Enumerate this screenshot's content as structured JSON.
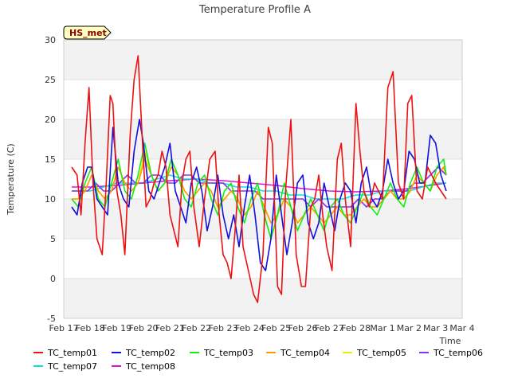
{
  "chart_data": {
    "type": "line",
    "title": "Temperature Profile A",
    "xlabel": "Time",
    "ylabel": "Temperature (C)",
    "badge": "HS_met",
    "ylim": [
      -5,
      30
    ],
    "xlim": [
      0,
      15
    ],
    "y_ticks": [
      -5,
      0,
      5,
      10,
      15,
      20,
      25,
      30
    ],
    "x_ticks": [
      {
        "label": "Feb 17",
        "x": 0
      },
      {
        "label": "Feb 18",
        "x": 1
      },
      {
        "label": "Feb 19",
        "x": 2
      },
      {
        "label": "Feb 20",
        "x": 3
      },
      {
        "label": "Feb 21",
        "x": 4
      },
      {
        "label": "Feb 22",
        "x": 5
      },
      {
        "label": "Feb 23",
        "x": 6
      },
      {
        "label": "Feb 24",
        "x": 7
      },
      {
        "label": "Feb 25",
        "x": 8
      },
      {
        "label": "Feb 26",
        "x": 9
      },
      {
        "label": "Feb 27",
        "x": 10
      },
      {
        "label": "Feb 28",
        "x": 11
      },
      {
        "label": "Mar 1",
        "x": 12
      },
      {
        "label": "Mar 2",
        "x": 13
      },
      {
        "label": "Mar 3",
        "x": 14
      },
      {
        "label": "Mar 4",
        "x": 15
      }
    ],
    "shaded_bands": [
      [
        -5,
        0
      ],
      [
        5,
        10
      ],
      [
        15,
        20
      ],
      [
        25,
        30
      ]
    ],
    "x_unit": "days since Feb 17",
    "series": [
      {
        "name": "TC_temp01",
        "color": "#ee1111",
        "x": [
          0.3,
          0.5,
          0.65,
          0.8,
          0.95,
          1.1,
          1.25,
          1.45,
          1.6,
          1.75,
          1.85,
          2.0,
          2.15,
          2.3,
          2.5,
          2.65,
          2.8,
          2.95,
          3.1,
          3.25,
          3.4,
          3.55,
          3.7,
          3.85,
          4.0,
          4.15,
          4.3,
          4.45,
          4.6,
          4.75,
          4.9,
          5.1,
          5.3,
          5.5,
          5.7,
          5.85,
          6.0,
          6.15,
          6.3,
          6.45,
          6.6,
          6.75,
          6.95,
          7.15,
          7.3,
          7.5,
          7.7,
          7.85,
          8.05,
          8.2,
          8.35,
          8.55,
          8.75,
          8.95,
          9.1,
          9.3,
          9.45,
          9.6,
          9.75,
          9.9,
          10.1,
          10.3,
          10.45,
          10.6,
          10.8,
          11.0,
          11.15,
          11.3,
          11.5,
          11.7,
          11.85,
          12.0,
          12.2,
          12.4,
          12.6,
          12.8,
          12.95,
          13.1,
          13.3,
          13.5,
          13.7,
          13.85,
          14.0,
          14.2,
          14.4
        ],
        "y": [
          14,
          13,
          8,
          17,
          24,
          12,
          5,
          3,
          12,
          23,
          22,
          11,
          8,
          3,
          18,
          25,
          28,
          18,
          9,
          10,
          12,
          13,
          16,
          14,
          8,
          6,
          4,
          12,
          15,
          16,
          9,
          4,
          10,
          15,
          16,
          8,
          3,
          2,
          0,
          6,
          13,
          4,
          1,
          -2,
          -3,
          3,
          19,
          17,
          -1,
          -2,
          11,
          20,
          3,
          -1,
          -1,
          9,
          10,
          13,
          8,
          4,
          1,
          15,
          17,
          10,
          4,
          22,
          16,
          11,
          9,
          12,
          11,
          10,
          24,
          26,
          12,
          10,
          22,
          23,
          11,
          10,
          14,
          13,
          12,
          11,
          10
        ]
      },
      {
        "name": "TC_temp02",
        "color": "#1111dd",
        "x": [
          0.3,
          0.5,
          0.7,
          0.9,
          1.05,
          1.25,
          1.45,
          1.65,
          1.85,
          2.05,
          2.25,
          2.45,
          2.65,
          2.85,
          3.0,
          3.2,
          3.4,
          3.6,
          3.8,
          4.0,
          4.2,
          4.4,
          4.6,
          4.8,
          5.0,
          5.2,
          5.4,
          5.6,
          5.8,
          6.0,
          6.2,
          6.4,
          6.6,
          6.8,
          7.0,
          7.2,
          7.4,
          7.6,
          7.8,
          8.0,
          8.2,
          8.4,
          8.6,
          8.8,
          9.0,
          9.2,
          9.4,
          9.6,
          9.8,
          10.0,
          10.2,
          10.4,
          10.6,
          10.8,
          11.0,
          11.2,
          11.4,
          11.6,
          11.8,
          12.0,
          12.2,
          12.4,
          12.6,
          12.8,
          13.0,
          13.2,
          13.4,
          13.6,
          13.8,
          14.0,
          14.2,
          14.4
        ],
        "y": [
          9,
          8,
          12,
          14,
          14,
          10,
          9,
          8,
          19,
          12,
          10,
          9,
          16,
          20,
          17,
          11,
          10,
          12,
          14,
          17,
          11,
          9,
          7,
          12,
          14,
          11,
          6,
          9,
          13,
          8,
          5,
          8,
          4,
          9,
          13,
          8,
          2,
          1,
          5,
          13,
          8,
          3,
          7,
          12,
          13,
          7,
          5,
          7,
          12,
          9,
          6,
          10,
          12,
          11,
          7,
          12,
          14,
          10,
          9,
          11,
          15,
          12,
          10,
          11,
          16,
          15,
          12,
          12,
          18,
          17,
          13,
          11
        ]
      },
      {
        "name": "TC_temp03",
        "color": "#11ee11",
        "x": [
          0.3,
          0.55,
          0.8,
          1.05,
          1.3,
          1.55,
          1.8,
          2.05,
          2.3,
          2.55,
          2.8,
          3.05,
          3.3,
          3.55,
          3.8,
          4.05,
          4.3,
          4.55,
          4.8,
          5.05,
          5.3,
          5.55,
          5.8,
          6.05,
          6.3,
          6.55,
          6.8,
          7.05,
          7.3,
          7.55,
          7.8,
          8.05,
          8.3,
          8.55,
          8.8,
          9.05,
          9.3,
          9.55,
          9.8,
          10.05,
          10.3,
          10.55,
          10.8,
          11.05,
          11.3,
          11.55,
          11.8,
          12.05,
          12.3,
          12.55,
          12.8,
          13.05,
          13.3,
          13.55,
          13.8,
          14.05,
          14.3,
          14.4
        ],
        "y": [
          10,
          9,
          12,
          14,
          10,
          9,
          12,
          15,
          11,
          10,
          13,
          17,
          13,
          11,
          12,
          15,
          13,
          10,
          9,
          12,
          13,
          10,
          8,
          11,
          12,
          9,
          7,
          10,
          12,
          8,
          5,
          8,
          12,
          9,
          6,
          8,
          10,
          8,
          6,
          9,
          10,
          8,
          7,
          9,
          11,
          9,
          8,
          10,
          12,
          10,
          9,
          12,
          14,
          12,
          11,
          14,
          15,
          13
        ]
      },
      {
        "name": "TC_temp04",
        "color": "#ff9900",
        "x": [
          0.3,
          0.55,
          0.8,
          1.05,
          1.3,
          1.55,
          1.8,
          2.05,
          2.3,
          2.55,
          2.8,
          3.05,
          3.3,
          3.55,
          3.8,
          4.05,
          4.3,
          4.55,
          4.8,
          5.05,
          5.3,
          5.55,
          5.8,
          6.05,
          6.3,
          6.55,
          6.8,
          7.05,
          7.3,
          7.55,
          7.8,
          8.05,
          8.3,
          8.55,
          8.8,
          9.05,
          9.3,
          9.55,
          9.8,
          10.05,
          10.3,
          10.55,
          10.8,
          11.05,
          11.3,
          11.55,
          11.8,
          12.05,
          12.3,
          12.55,
          12.8,
          13.05,
          13.3,
          13.55,
          13.8,
          14.05,
          14.3,
          14.4
        ],
        "y": [
          10,
          10,
          11,
          13,
          11,
          10,
          11,
          14,
          12,
          11,
          12,
          15,
          13,
          11,
          12,
          14,
          13,
          11,
          10,
          11,
          12,
          11,
          9,
          10,
          11,
          10,
          8,
          9,
          11,
          9,
          7,
          8,
          10,
          9,
          7,
          8,
          9,
          8,
          7,
          8,
          9,
          8,
          8,
          9,
          10,
          9,
          9,
          10,
          11,
          10,
          10,
          11,
          13,
          12,
          11,
          13,
          14,
          13
        ]
      },
      {
        "name": "TC_temp05",
        "color": "#eeee00",
        "x": [
          0.3,
          0.55,
          0.8,
          1.05,
          1.3,
          1.55,
          1.8,
          2.05,
          2.3,
          2.55,
          2.8,
          3.05,
          3.3,
          3.55,
          3.8,
          4.05,
          4.3,
          4.55,
          4.8,
          5.05,
          5.3,
          5.55,
          5.8,
          6.05,
          6.3,
          6.55,
          6.8,
          7.05,
          7.3,
          7.55,
          7.8,
          8.05,
          8.3,
          8.55,
          8.8,
          9.05,
          9.3,
          9.55,
          9.8,
          10.05,
          10.3,
          10.55,
          10.8,
          11.05,
          11.3,
          11.55,
          11.8,
          12.05,
          12.3,
          12.55,
          12.8,
          13.05,
          13.3,
          13.55,
          13.8,
          14.05,
          14.3,
          14.4
        ],
        "y": [
          10,
          10,
          11,
          13,
          11,
          10,
          11,
          14,
          12,
          11,
          12,
          16,
          13,
          11,
          12,
          15,
          13,
          11,
          10,
          11,
          12,
          11,
          9,
          10,
          11,
          10,
          8,
          9,
          11,
          9,
          7,
          8,
          10,
          9,
          7,
          8,
          9,
          8,
          7,
          8,
          9,
          8,
          8,
          9,
          10,
          9,
          9,
          10,
          11,
          10,
          10,
          11,
          13,
          12,
          11,
          13,
          14,
          13
        ]
      },
      {
        "name": "TC_temp06",
        "color": "#8833ee",
        "x": [
          0.3,
          0.6,
          0.9,
          1.2,
          1.5,
          1.8,
          2.1,
          2.4,
          2.7,
          3.0,
          3.3,
          3.6,
          3.9,
          4.2,
          4.5,
          4.8,
          5.1,
          5.4,
          5.7,
          6.0,
          6.3,
          6.6,
          6.9,
          7.2,
          7.5,
          7.8,
          8.1,
          8.4,
          8.7,
          9.0,
          9.3,
          9.6,
          9.9,
          10.2,
          10.5,
          10.8,
          11.1,
          11.4,
          11.7,
          12.0,
          12.3,
          12.6,
          12.9,
          13.2,
          13.5,
          13.8,
          14.1,
          14.4
        ],
        "y": [
          11,
          11,
          11,
          12,
          11,
          11,
          12,
          13,
          12,
          12,
          13,
          13,
          12,
          12,
          13,
          13,
          12,
          12,
          12,
          12,
          11,
          11,
          11,
          11,
          10,
          10,
          10,
          10,
          10,
          10,
          9,
          10,
          9,
          9,
          9,
          9,
          10,
          9,
          10,
          10,
          11,
          11,
          11,
          12,
          12,
          13,
          14,
          13
        ]
      },
      {
        "name": "TC_temp07",
        "color": "#11dddd",
        "x": [
          0.3,
          1.0,
          1.5,
          2.0,
          2.5,
          3.0,
          3.5,
          4.0,
          4.5,
          5.0,
          5.5,
          6.0,
          6.5,
          7.0,
          7.5,
          8.0,
          8.5,
          9.0,
          9.5,
          10.0,
          10.5,
          11.0,
          11.5,
          12.0,
          12.5,
          13.0,
          13.5,
          14.0,
          14.4
        ],
        "y": [
          11,
          11,
          11.5,
          12,
          12,
          12,
          12.5,
          13,
          12.5,
          12.5,
          12,
          12,
          11.5,
          11.5,
          11,
          11,
          10.5,
          10.5,
          10,
          10,
          10,
          10.5,
          10.5,
          11,
          11,
          11,
          11.5,
          12,
          12
        ]
      },
      {
        "name": "TC_temp08",
        "color": "#dd11dd",
        "x": [
          0.3,
          1.0,
          2.0,
          3.0,
          4.0,
          5.0,
          6.0,
          7.0,
          8.0,
          9.0,
          10.0,
          11.0,
          12.0,
          13.0,
          14.0,
          14.4
        ],
        "y": [
          11.5,
          11.5,
          11.7,
          12,
          12.3,
          12.5,
          12.3,
          12,
          11.7,
          11.3,
          11,
          10.9,
          11,
          11.3,
          11.8,
          12
        ]
      }
    ]
  }
}
